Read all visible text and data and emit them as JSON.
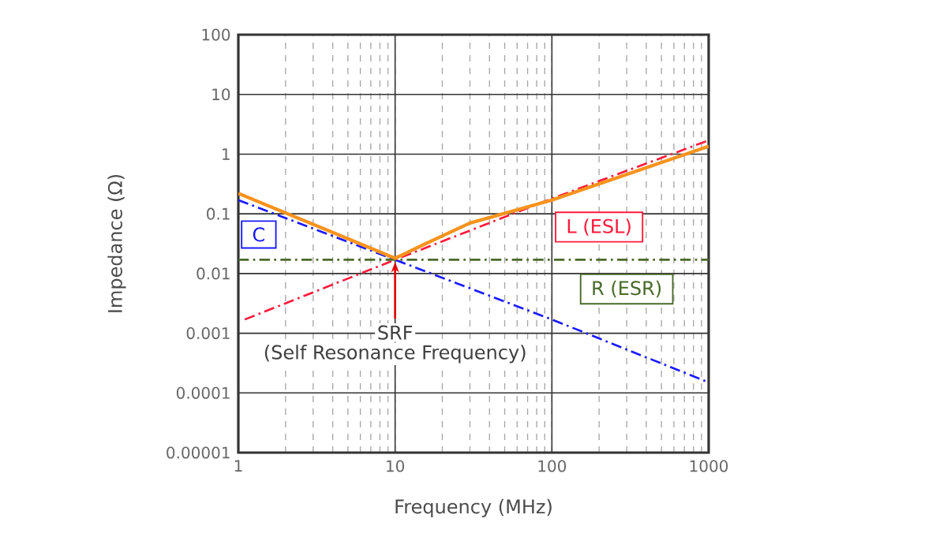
{
  "chart_data": {
    "type": "line",
    "xlabel": "Frequency (MHz)",
    "ylabel": "Impedance (Ω)",
    "log": "xy",
    "grid": true,
    "marker": "none",
    "xlim": [
      1,
      1000
    ],
    "ylim": [
      1e-05,
      100
    ],
    "xticks": [
      1,
      10,
      100,
      1000
    ],
    "yticks": [
      {
        "value": 1e-05,
        "label": "0.00001"
      },
      {
        "value": 0.0001,
        "label": "0.0001"
      },
      {
        "value": 0.001,
        "label": "0.001"
      },
      {
        "value": 0.01,
        "label": "0.01"
      },
      {
        "value": 0.1,
        "label": "0.1"
      },
      {
        "value": 1,
        "label": "1"
      },
      {
        "value": 10,
        "label": "10"
      },
      {
        "value": 100,
        "label": "100"
      }
    ],
    "series": [
      {
        "name": "C",
        "color": "#1a1aff",
        "line_style": "dashed",
        "x": [
          1,
          10,
          100,
          1000
        ],
        "values": [
          0.17,
          0.017,
          0.0017,
          0.00015
        ]
      },
      {
        "name": "L (ESL)",
        "color": "#ff1a3c",
        "line_style": "dashed",
        "x": [
          1.1,
          10,
          100,
          1000
        ],
        "values": [
          0.0017,
          0.017,
          0.18,
          1.7
        ]
      },
      {
        "name": "R (ESR)",
        "color": "#4a6a2a",
        "line_style": "dashed",
        "x": [
          1,
          1000
        ],
        "values": [
          0.017,
          0.017
        ]
      },
      {
        "color": "#f7931e",
        "line_style": "solid",
        "x": [
          1,
          10,
          15,
          30,
          100,
          1000
        ],
        "values": [
          0.22,
          0.018,
          0.03,
          0.07,
          0.17,
          1.35
        ]
      }
    ],
    "annotations": [
      {
        "text": "SRF",
        "x": 10,
        "y": 0.017
      },
      "(Self Resonance Frequency)"
    ]
  }
}
